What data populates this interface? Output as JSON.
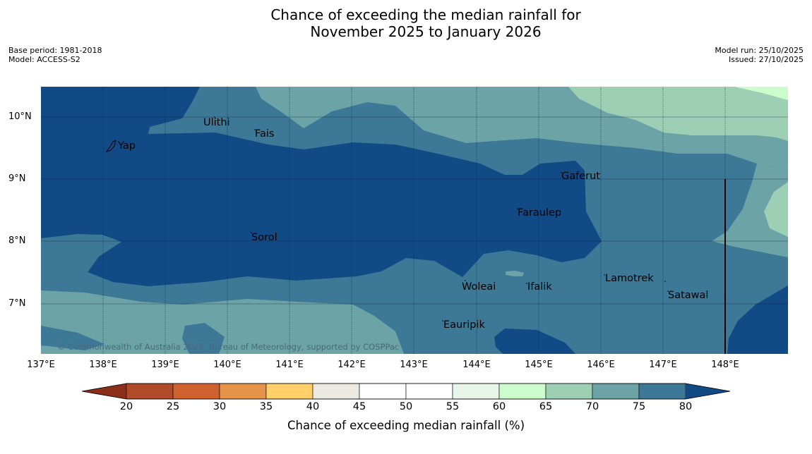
{
  "title": {
    "line1": "Chance of exceeding the median rainfall for",
    "line2": "November 2025 to January 2026"
  },
  "meta": {
    "base_period": "Base period: 1981-2018",
    "model": "Model: ACCESS-S2",
    "model_run": "Model run: 25/10/2025",
    "issued": "Issued: 27/10/2025"
  },
  "axes": {
    "lat_labels": [
      "10°N",
      "9°N",
      "8°N",
      "7°N"
    ],
    "lon_labels": [
      "137°E",
      "138°E",
      "139°E",
      "140°E",
      "141°E",
      "142°E",
      "143°E",
      "144°E",
      "145°E",
      "146°E",
      "147°E",
      "148°E"
    ]
  },
  "places": [
    {
      "name": "Yap"
    },
    {
      "name": "Ulithi"
    },
    {
      "name": "Fais"
    },
    {
      "name": "Gaferut"
    },
    {
      "name": "Faraulep"
    },
    {
      "name": "Sorol"
    },
    {
      "name": "Lamotrek"
    },
    {
      "name": "Woleai"
    },
    {
      "name": "Ifalik"
    },
    {
      "name": "Satawal"
    },
    {
      "name": "Eauripik"
    }
  ],
  "copyright": "© Commonwealth of Australia 2025, Bureau of Meteorology, supported by COSPPac",
  "colorbar": {
    "label": "Chance of exceeding median rainfall (%)",
    "ticks": [
      "20",
      "25",
      "30",
      "35",
      "40",
      "45",
      "50",
      "55",
      "60",
      "65",
      "70",
      "75",
      "80"
    ],
    "under_color": "#8b2e1a",
    "over_color": "#124a85",
    "colors": [
      "#b04a28",
      "#cf6030",
      "#e49348",
      "#ffcf6a",
      "#ece9e3",
      "#ffffff",
      "#ffffff",
      "#e8f5e9",
      "#ccfccc",
      "#9ccfb4",
      "#6ba3a6",
      "#3d7896"
    ]
  },
  "map_colors": {
    "c60_65": "#ccfccc",
    "c65_70": "#9ccfb4",
    "c70_75": "#6ba3a6",
    "c75_80": "#3d7896",
    "c80": "#124a85"
  }
}
